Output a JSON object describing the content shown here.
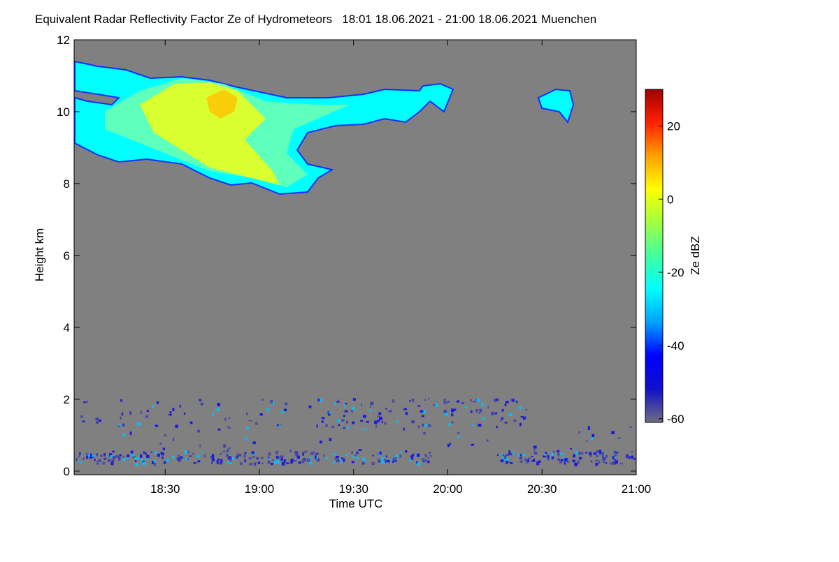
{
  "chart_data": {
    "type": "heatmap",
    "title": "Equivalent Radar Reflectivity Factor Ze of Hydrometeors   18:01 18.06.2021 - 21:00 18.06.2021 Muenchen",
    "x_label": "Time UTC",
    "y_label": "Height km",
    "colorbar_label": "Ze dBZ",
    "xlim": [
      1081,
      1260
    ],
    "xticks": [
      {
        "value": 1110,
        "label": "18:30"
      },
      {
        "value": 1140,
        "label": "19:00"
      },
      {
        "value": 1170,
        "label": "19:30"
      },
      {
        "value": 1200,
        "label": "20:00"
      },
      {
        "value": 1230,
        "label": "20:30"
      },
      {
        "value": 1260,
        "label": "21:00"
      }
    ],
    "ylim": [
      -0.1,
      12
    ],
    "yticks": [
      0,
      2,
      4,
      6,
      8,
      10,
      12
    ],
    "clim": [
      -61,
      30
    ],
    "cticks": [
      -60,
      -40,
      -20,
      0,
      20
    ],
    "colormap": [
      "#6e6e80",
      "#1010c8",
      "#0000ff",
      "#00a0ff",
      "#00ffff",
      "#40ffa0",
      "#a0ff40",
      "#ffff00",
      "#ffa000",
      "#ff2000",
      "#a00000"
    ],
    "background": "#808080"
  }
}
